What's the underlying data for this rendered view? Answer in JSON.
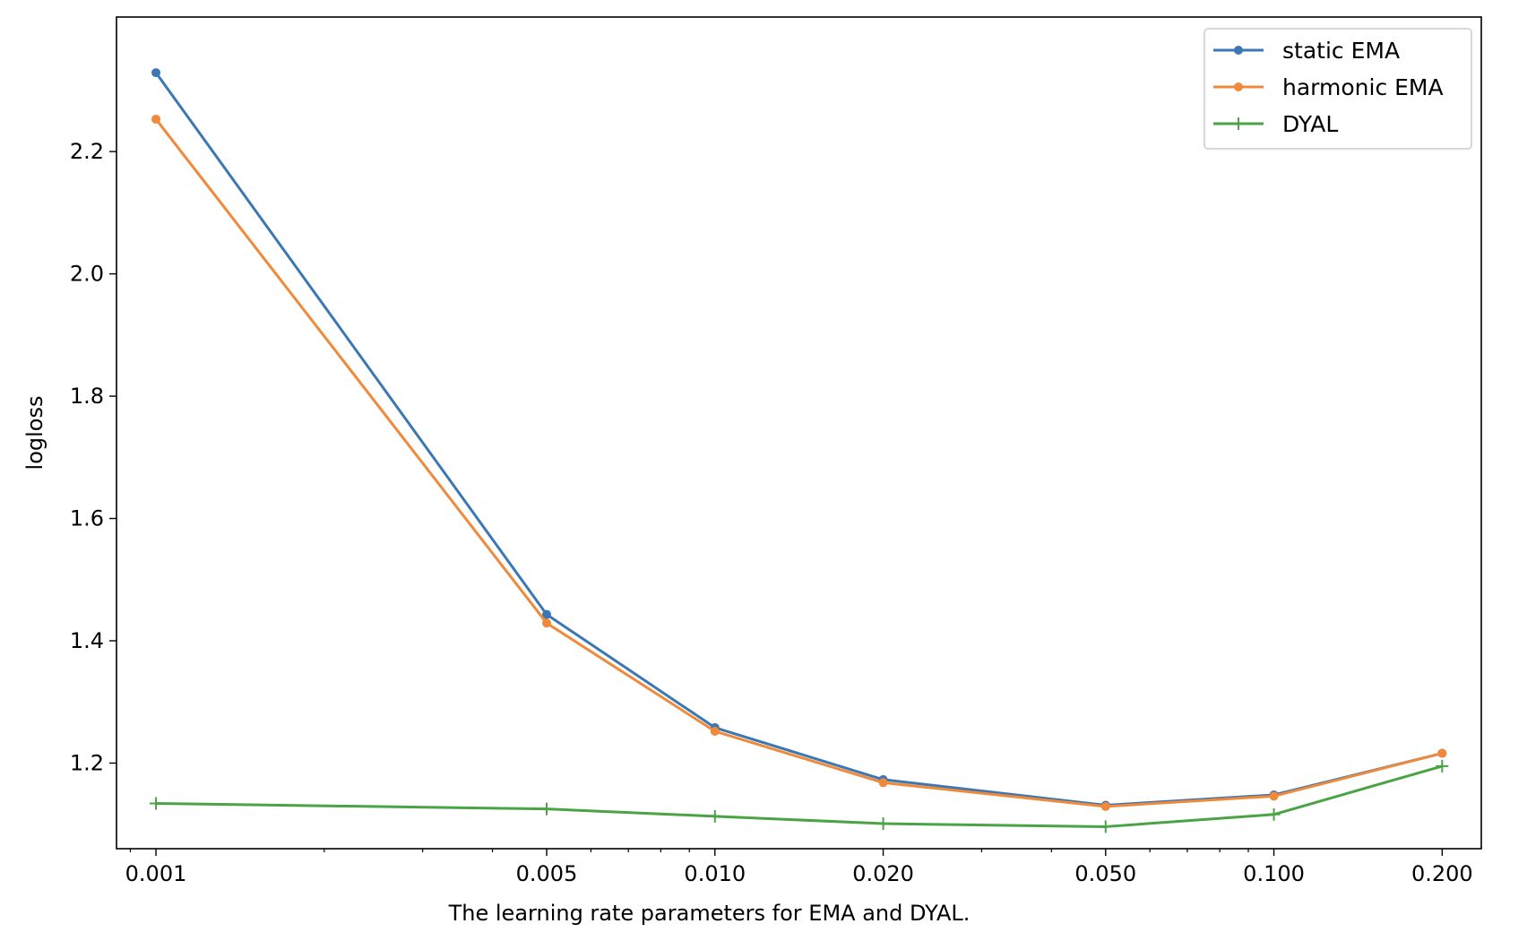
{
  "chart_data": {
    "type": "line",
    "title": "",
    "xlabel": "The learning rate parameters for EMA and DYAL.",
    "ylabel": "logloss",
    "xscale": "log",
    "x": [
      0.001,
      0.005,
      0.01,
      0.02,
      0.05,
      0.1,
      0.2
    ],
    "x_tick_labels": [
      "0.001",
      "0.005",
      "0.010",
      "0.020",
      "0.050",
      "0.100",
      "0.200"
    ],
    "xlim": [
      0.00085,
      0.235
    ],
    "ylim": [
      1.06,
      2.42
    ],
    "y_ticks": [
      1.2,
      1.4,
      1.6,
      1.8,
      2.0,
      2.2
    ],
    "y_tick_labels": [
      "1.2",
      "1.4",
      "1.6",
      "1.8",
      "2.0",
      "2.2"
    ],
    "grid": false,
    "legend_position": "top-right",
    "series": [
      {
        "name": "static EMA",
        "color": "#3b78b3",
        "marker": "dot",
        "values": [
          2.329,
          1.443,
          1.258,
          1.173,
          1.131,
          1.148,
          1.216
        ]
      },
      {
        "name": "harmonic EMA",
        "color": "#f0893a",
        "marker": "dot",
        "values": [
          2.253,
          1.429,
          1.252,
          1.168,
          1.129,
          1.146,
          1.216
        ]
      },
      {
        "name": "DYAL",
        "color": "#4aa344",
        "marker": "plus",
        "values": [
          1.134,
          1.125,
          1.113,
          1.101,
          1.096,
          1.116,
          1.195
        ]
      }
    ]
  }
}
